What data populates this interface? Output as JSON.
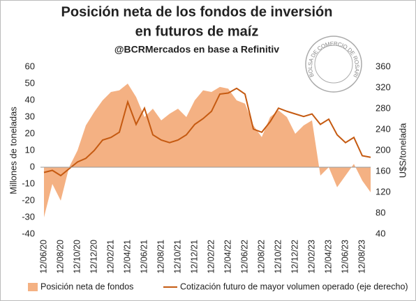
{
  "chart_data": {
    "type": "area-line",
    "title": "Posición neta de los fondos de inversión",
    "title_line2": "en futuros de maíz",
    "subtitle": "@BCRMercados en base a Refinitiv",
    "logo_text": "BOLSA DE COMERCIO DE ROSARIO",
    "ylabel": "Millones de toneladas",
    "y2label": "U$S/tonelada",
    "categories": [
      "12/06/20",
      null,
      "12/08/20",
      null,
      "12/10/20",
      null,
      "12/12/20",
      null,
      "12/02/21",
      null,
      "12/04/21",
      null,
      "12/06/21",
      null,
      "12/08/21",
      null,
      "12/10/21",
      null,
      "12/12/21",
      null,
      "12/02/22",
      null,
      "12/04/22",
      null,
      "12/06/22",
      null,
      "12/08/22",
      null,
      "12/10/22",
      null,
      "12/12/22",
      null,
      "12/02/23",
      null,
      "12/04/23",
      null,
      "12/06/23",
      null,
      "12/08/23",
      null
    ],
    "series": [
      {
        "name": "Posición neta de fondos",
        "color": "#f4b183",
        "kind": "area",
        "values": [
          -30,
          -10,
          -20,
          0,
          10,
          25,
          33,
          40,
          45,
          46,
          50,
          42,
          30,
          35,
          28,
          32,
          35,
          30,
          40,
          46,
          45,
          48,
          47,
          40,
          38,
          25,
          18,
          30,
          34,
          30,
          20,
          25,
          28,
          -5,
          0,
          -12,
          -5,
          2,
          -8,
          -15
        ]
      },
      {
        "name": "Cotización futuro de mayor volumen operado (eje derecho)",
        "color": "#c55a11",
        "kind": "line",
        "axis": "y2",
        "values": [
          158,
          162,
          152,
          165,
          178,
          185,
          200,
          220,
          225,
          235,
          293,
          250,
          281,
          230,
          220,
          215,
          220,
          230,
          250,
          261,
          275,
          308,
          310,
          319,
          308,
          241,
          235,
          255,
          281,
          275,
          270,
          265,
          270,
          250,
          260,
          230,
          215,
          225,
          190,
          187
        ]
      }
    ],
    "ylim": [
      -40,
      60
    ],
    "yticks": [
      -40,
      -30,
      -20,
      -10,
      0,
      10,
      20,
      30,
      40,
      50,
      60
    ],
    "y2lim": [
      40,
      360
    ],
    "y2ticks": [
      40,
      80,
      120,
      160,
      200,
      240,
      280,
      320,
      360
    ],
    "legend": "bottom"
  }
}
